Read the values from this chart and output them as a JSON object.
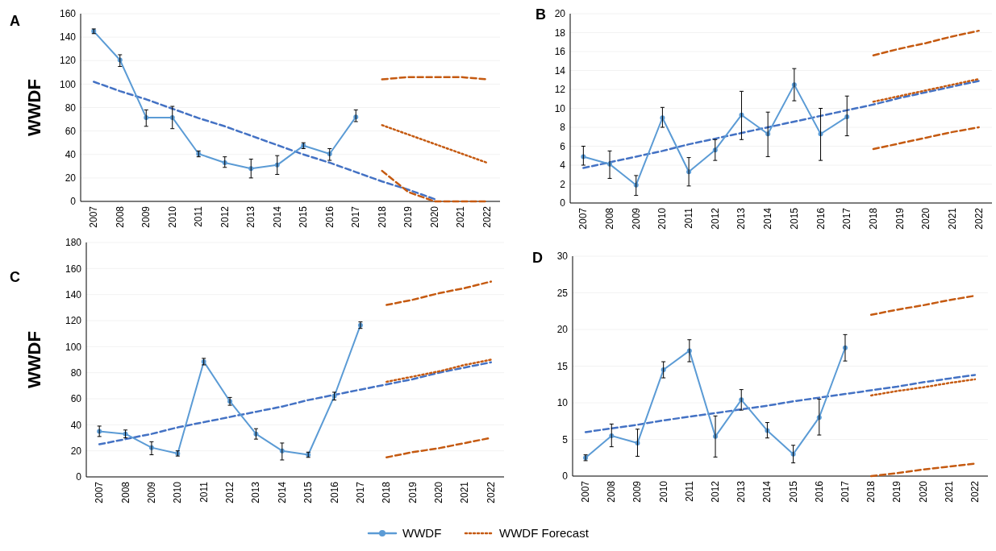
{
  "chart_data": [
    {
      "type": "line",
      "title": "A",
      "ylabel": "WWDF",
      "categories": [
        "2007",
        "2008",
        "2009",
        "2010",
        "2011",
        "2012",
        "2013",
        "2014",
        "2015",
        "2016",
        "2017",
        "2018",
        "2019",
        "2020",
        "2021",
        "2022"
      ],
      "ylim": [
        0,
        160
      ],
      "yticks": [
        0,
        20,
        40,
        60,
        80,
        100,
        120,
        140,
        160
      ],
      "grid": "y",
      "series": [
        {
          "color": "#4472c4",
          "line_style": "dashed",
          "values": [
            102,
            94,
            87,
            79,
            71,
            64,
            56,
            48,
            40,
            33,
            25,
            17,
            10,
            2,
            null,
            null
          ]
        },
        {
          "color": "#c55a11",
          "line_style": "dotted",
          "values": [
            null,
            null,
            null,
            null,
            null,
            null,
            null,
            null,
            null,
            null,
            null,
            65,
            57,
            49,
            41,
            33
          ]
        },
        {
          "color": "#c55a11",
          "line_style": "dashed",
          "values": [
            null,
            null,
            null,
            null,
            null,
            null,
            null,
            null,
            null,
            null,
            null,
            104,
            106,
            106,
            106,
            104
          ]
        },
        {
          "color": "#c55a11",
          "line_style": "dashed",
          "values": [
            null,
            null,
            null,
            null,
            null,
            null,
            null,
            null,
            null,
            null,
            null,
            26,
            8,
            0,
            0,
            0
          ]
        },
        {
          "color": "#5b9bd5",
          "line_style": "solid",
          "marker": "circle",
          "values": [
            145,
            120.5,
            71.5,
            71.5,
            40.5,
            33,
            28,
            31,
            47.5,
            40.5,
            72,
            null,
            null,
            null,
            null,
            null
          ],
          "errors": [
            [
              143,
              147
            ],
            [
              115,
              125
            ],
            [
              64,
              78
            ],
            [
              62,
              81
            ],
            [
              38,
              43
            ],
            [
              29,
              38
            ],
            [
              20,
              36
            ],
            [
              23,
              39
            ],
            [
              45,
              50
            ],
            [
              35,
              45
            ],
            [
              68,
              78
            ],
            null,
            null,
            null,
            null,
            null
          ]
        }
      ]
    },
    {
      "type": "line",
      "title": "B",
      "categories": [
        "2007",
        "2008",
        "2009",
        "2010",
        "2011",
        "2012",
        "2013",
        "2014",
        "2015",
        "2016",
        "2017",
        "2018",
        "2019",
        "2020",
        "2021",
        "2022"
      ],
      "ylim": [
        0,
        20
      ],
      "yticks": [
        0,
        2,
        4,
        6,
        8,
        10,
        12,
        14,
        16,
        18,
        20
      ],
      "grid": "y",
      "series": [
        {
          "color": "#4472c4",
          "line_style": "dashed",
          "values": [
            3.7,
            4.3,
            4.9,
            5.5,
            6.2,
            6.8,
            7.4,
            8.0,
            8.6,
            9.2,
            9.8,
            10.4,
            11.1,
            11.7,
            12.3,
            12.9
          ]
        },
        {
          "color": "#c55a11",
          "line_style": "dotted",
          "values": [
            null,
            null,
            null,
            null,
            null,
            null,
            null,
            null,
            null,
            null,
            null,
            10.7,
            11.3,
            11.9,
            12.5,
            13.1
          ]
        },
        {
          "color": "#c55a11",
          "line_style": "dashed",
          "values": [
            null,
            null,
            null,
            null,
            null,
            null,
            null,
            null,
            null,
            null,
            null,
            15.6,
            16.3,
            16.9,
            17.6,
            18.2
          ]
        },
        {
          "color": "#c55a11",
          "line_style": "dashed",
          "values": [
            null,
            null,
            null,
            null,
            null,
            null,
            null,
            null,
            null,
            null,
            null,
            5.7,
            6.3,
            6.9,
            7.5,
            8.0
          ]
        },
        {
          "color": "#5b9bd5",
          "line_style": "solid",
          "marker": "circle",
          "values": [
            4.9,
            4.1,
            1.9,
            9.0,
            3.3,
            5.6,
            9.3,
            7.3,
            12.5,
            7.3,
            9.1,
            null,
            null,
            null,
            null,
            null
          ],
          "errors": [
            [
              4.0,
              6.0
            ],
            [
              2.6,
              5.5
            ],
            [
              0.8,
              2.9
            ],
            [
              8.0,
              10.1
            ],
            [
              1.8,
              4.8
            ],
            [
              4.5,
              6.7
            ],
            [
              6.7,
              11.8
            ],
            [
              4.9,
              9.6
            ],
            [
              10.8,
              14.2
            ],
            [
              4.5,
              10.0
            ],
            [
              7.1,
              11.3
            ],
            null,
            null,
            null,
            null,
            null
          ]
        }
      ]
    },
    {
      "type": "line",
      "title": "C",
      "ylabel": "WWDF",
      "categories": [
        "2007",
        "2008",
        "2009",
        "2010",
        "2011",
        "2012",
        "2013",
        "2014",
        "2015",
        "2016",
        "2017",
        "2018",
        "2019",
        "2020",
        "2021",
        "2022"
      ],
      "ylim": [
        0,
        180
      ],
      "yticks": [
        0,
        20,
        40,
        60,
        80,
        100,
        120,
        140,
        160,
        180
      ],
      "grid": "y",
      "series": [
        {
          "color": "#4472c4",
          "line_style": "dashed",
          "values": [
            25,
            29,
            33,
            38,
            42,
            46,
            50,
            54,
            59,
            63,
            67,
            71,
            75,
            80,
            84,
            88
          ]
        },
        {
          "color": "#c55a11",
          "line_style": "dotted",
          "values": [
            null,
            null,
            null,
            null,
            null,
            null,
            null,
            null,
            null,
            null,
            null,
            73,
            77,
            81,
            86,
            90
          ]
        },
        {
          "color": "#c55a11",
          "line_style": "dashed",
          "values": [
            null,
            null,
            null,
            null,
            null,
            null,
            null,
            null,
            null,
            null,
            null,
            132,
            136,
            141,
            145,
            150
          ]
        },
        {
          "color": "#c55a11",
          "line_style": "dashed",
          "values": [
            null,
            null,
            null,
            null,
            null,
            null,
            null,
            null,
            null,
            null,
            null,
            15,
            19,
            22,
            26,
            30
          ]
        },
        {
          "color": "#5b9bd5",
          "line_style": "solid",
          "marker": "circle",
          "values": [
            35,
            33,
            22.5,
            18,
            88.5,
            58,
            33,
            20,
            17,
            62,
            116.5,
            null,
            null,
            null,
            null,
            null
          ],
          "errors": [
            [
              31,
              39
            ],
            [
              30,
              36
            ],
            [
              17,
              27
            ],
            [
              16,
              20
            ],
            [
              86,
              91
            ],
            [
              55,
              61
            ],
            [
              29,
              37
            ],
            [
              13,
              26
            ],
            [
              15,
              19
            ],
            [
              59,
              65
            ],
            [
              114,
              119
            ],
            null,
            null,
            null,
            null,
            null
          ]
        }
      ]
    },
    {
      "type": "line",
      "title": "D",
      "categories": [
        "2007",
        "2008",
        "2009",
        "2010",
        "2011",
        "2012",
        "2013",
        "2014",
        "2015",
        "2016",
        "2017",
        "2018",
        "2019",
        "2020",
        "2021",
        "2022"
      ],
      "ylim": [
        0,
        30
      ],
      "yticks": [
        0,
        5,
        10,
        15,
        20,
        25,
        30
      ],
      "grid": "y",
      "legend": "bottom",
      "series": [
        {
          "color": "#4472c4",
          "line_style": "dashed",
          "values": [
            6.0,
            6.5,
            7.0,
            7.6,
            8.1,
            8.6,
            9.1,
            9.6,
            10.2,
            10.7,
            11.2,
            11.7,
            12.2,
            12.8,
            13.3,
            13.8
          ]
        },
        {
          "name": "WWDF Forecast",
          "color": "#c55a11",
          "line_style": "dotted",
          "values": [
            null,
            null,
            null,
            null,
            null,
            null,
            null,
            null,
            null,
            null,
            null,
            11.0,
            11.6,
            12.1,
            12.7,
            13.2
          ]
        },
        {
          "color": "#c55a11",
          "line_style": "dashed",
          "values": [
            null,
            null,
            null,
            null,
            null,
            null,
            null,
            null,
            null,
            null,
            null,
            22.0,
            22.7,
            23.3,
            24.0,
            24.6
          ]
        },
        {
          "color": "#c55a11",
          "line_style": "dashed",
          "values": [
            null,
            null,
            null,
            null,
            null,
            null,
            null,
            null,
            null,
            null,
            null,
            0,
            0.4,
            0.9,
            1.3,
            1.7
          ]
        },
        {
          "name": "WWDF",
          "color": "#5b9bd5",
          "line_style": "solid",
          "marker": "circle",
          "values": [
            2.5,
            5.5,
            4.5,
            14.5,
            17.1,
            5.4,
            10.4,
            6.2,
            3.0,
            8.0,
            17.5,
            null,
            null,
            null,
            null,
            null
          ],
          "errors": [
            [
              2.1,
              2.9
            ],
            [
              4.0,
              7.1
            ],
            [
              2.7,
              6.4
            ],
            [
              13.4,
              15.6
            ],
            [
              15.6,
              18.6
            ],
            [
              2.6,
              8.2
            ],
            [
              9.0,
              11.8
            ],
            [
              5.2,
              7.3
            ],
            [
              1.8,
              4.2
            ],
            [
              5.6,
              10.5
            ],
            [
              15.7,
              19.3
            ],
            null,
            null,
            null,
            null,
            null
          ]
        }
      ]
    }
  ]
}
